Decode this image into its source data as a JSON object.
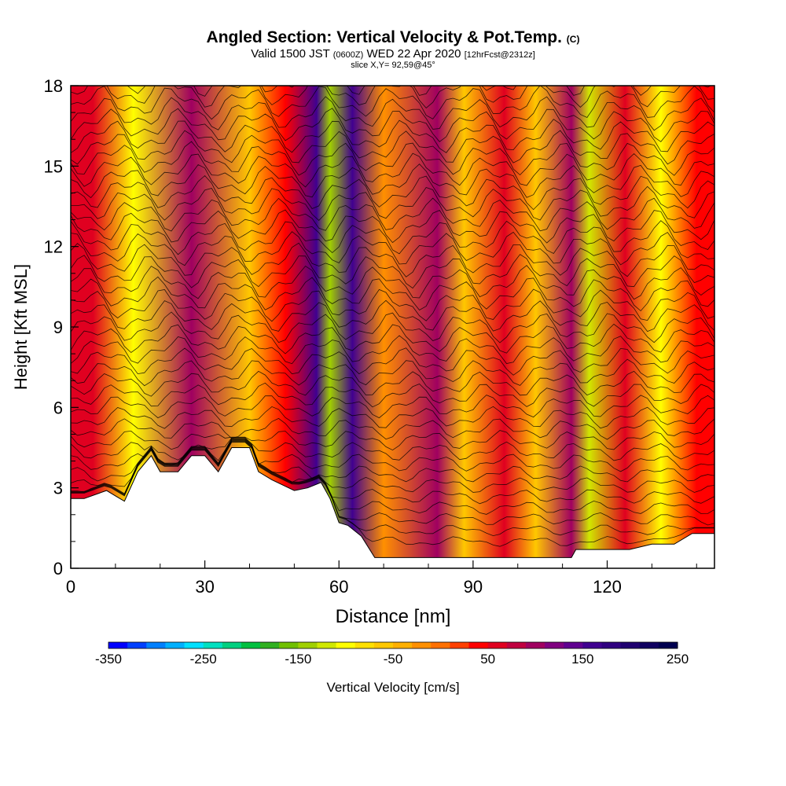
{
  "header": {
    "title": "Angled Section: Vertical Velocity & Pot.Temp.",
    "title_unit": "(C)",
    "valid_prefix": "Valid 1500 JST",
    "valid_zulu": "(0600Z)",
    "valid_date": "WED 22 Apr 2020",
    "forecast": "[12hrFcst@2312z]",
    "slice": "slice X,Y= 92,59@45°"
  },
  "chart_data": {
    "type": "heatmap",
    "xlabel": "Distance [nm]",
    "ylabel": "Height [Kft MSL]",
    "xlim": [
      0,
      144
    ],
    "ylim": [
      0,
      18
    ],
    "x_ticks": [
      0,
      30,
      60,
      90,
      120
    ],
    "y_ticks": [
      0,
      3,
      6,
      9,
      12,
      15,
      18
    ],
    "terrain_kft": {
      "x": [
        0,
        3,
        8,
        10,
        12,
        15,
        18,
        20,
        24,
        27,
        30,
        33,
        36,
        40,
        42,
        45,
        50,
        53,
        56,
        58,
        60,
        62,
        65,
        68,
        72,
        80,
        90,
        100,
        105,
        112,
        113,
        118,
        125,
        130,
        135,
        139,
        144
      ],
      "y": [
        2.6,
        2.6,
        2.9,
        2.7,
        2.5,
        3.6,
        4.2,
        3.6,
        3.6,
        4.2,
        4.2,
        3.6,
        4.5,
        4.5,
        3.6,
        3.3,
        2.9,
        3.0,
        3.2,
        2.6,
        1.7,
        1.6,
        1.2,
        0.4,
        0.4,
        0.4,
        0.4,
        0.4,
        0.4,
        0.4,
        0.7,
        0.7,
        0.7,
        0.9,
        0.9,
        1.3,
        1.3
      ]
    },
    "velocity_bands": [
      {
        "x": 5,
        "w": 60
      },
      {
        "x": 14,
        "w": -110
      },
      {
        "x": 27,
        "w": 90
      },
      {
        "x": 40,
        "w": -60
      },
      {
        "x": 48,
        "w": 40
      },
      {
        "x": 55,
        "w": 160
      },
      {
        "x": 58,
        "w": -150
      },
      {
        "x": 63,
        "w": 150
      },
      {
        "x": 70,
        "w": -30
      },
      {
        "x": 82,
        "w": 90
      },
      {
        "x": 88,
        "w": -60
      },
      {
        "x": 97,
        "w": 60
      },
      {
        "x": 104,
        "w": -70
      },
      {
        "x": 112,
        "w": 90
      },
      {
        "x": 116,
        "w": -120
      },
      {
        "x": 124,
        "w": 50
      },
      {
        "x": 132,
        "w": -100
      },
      {
        "x": 140,
        "w": 40
      }
    ],
    "colorbar": {
      "label": "Vertical Velocity [cm/s]",
      "min": -350,
      "max": 250,
      "step": 20,
      "tick_labels": [
        "-350",
        "-250",
        "-150",
        "-50",
        "50",
        "150",
        "250"
      ],
      "colors": [
        "#0000ff",
        "#0040ff",
        "#0080ff",
        "#00b0ff",
        "#00e0ff",
        "#00e0c0",
        "#00d080",
        "#00c040",
        "#30b020",
        "#70c000",
        "#a0d000",
        "#d0e800",
        "#ffff00",
        "#ffe000",
        "#ffc800",
        "#ffb000",
        "#ff9000",
        "#ff7000",
        "#ff4000",
        "#ff0000",
        "#e00020",
        "#c00040",
        "#a00060",
        "#800080",
        "#600090",
        "#400090",
        "#300080",
        "#200070",
        "#100060",
        "#000050"
      ]
    }
  }
}
